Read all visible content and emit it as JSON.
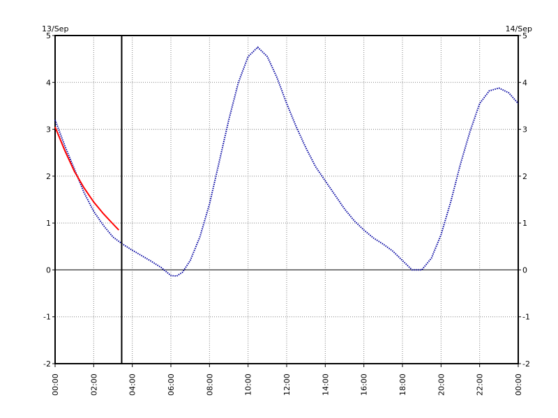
{
  "dates": {
    "left": "13/Sep",
    "right": "14/Sep"
  },
  "chart_data": {
    "type": "line",
    "xlabel": "",
    "ylabel": "",
    "x_unit": "hours",
    "xlim": [
      0,
      24
    ],
    "ylim": [
      -2,
      5
    ],
    "grid": true,
    "x_ticks": [
      0,
      2,
      4,
      6,
      8,
      10,
      12,
      14,
      16,
      18,
      20,
      22,
      24
    ],
    "x_tick_labels": [
      "00:00",
      "02:00",
      "04:00",
      "06:00",
      "08:00",
      "10:00",
      "12:00",
      "14:00",
      "16:00",
      "18:00",
      "20:00",
      "22:00",
      "00:00"
    ],
    "y_ticks": [
      -2,
      -1,
      0,
      1,
      2,
      3,
      4,
      5
    ],
    "y_tick_labels": [
      "-2",
      "-1",
      "0",
      "1",
      "2",
      "3",
      "4",
      "5"
    ],
    "current_time_marker": 3.45,
    "series": [
      {
        "color": "#0000a0",
        "style": "dotted",
        "x": [
          0,
          0.5,
          1,
          1.5,
          2,
          2.5,
          3,
          3.5,
          4,
          4.5,
          5,
          5.5,
          6,
          6.3,
          6.6,
          7,
          7.5,
          8,
          8.5,
          9,
          9.5,
          10,
          10.5,
          11,
          11.5,
          12,
          12.5,
          13,
          13.5,
          14,
          14.5,
          15,
          15.5,
          16,
          16.5,
          17,
          17.5,
          18,
          18.5,
          19,
          19.5,
          20,
          20.5,
          21,
          21.5,
          22,
          22.5,
          23,
          23.5,
          24
        ],
        "y": [
          3.2,
          2.65,
          2.15,
          1.65,
          1.25,
          0.95,
          0.7,
          0.55,
          0.42,
          0.3,
          0.18,
          0.05,
          -0.12,
          -0.13,
          -0.05,
          0.2,
          0.7,
          1.4,
          2.3,
          3.2,
          4.0,
          4.55,
          4.75,
          4.55,
          4.1,
          3.55,
          3.05,
          2.6,
          2.2,
          1.9,
          1.6,
          1.3,
          1.05,
          0.85,
          0.68,
          0.55,
          0.4,
          0.2,
          0.0,
          0.0,
          0.25,
          0.75,
          1.45,
          2.25,
          2.95,
          3.55,
          3.82,
          3.88,
          3.78,
          3.55
        ]
      },
      {
        "color": "#ff0000",
        "style": "solid",
        "x": [
          0,
          0.5,
          1,
          1.5,
          2,
          2.5,
          3,
          3.3
        ],
        "y": [
          3.05,
          2.55,
          2.1,
          1.75,
          1.45,
          1.2,
          0.98,
          0.85
        ]
      }
    ]
  }
}
